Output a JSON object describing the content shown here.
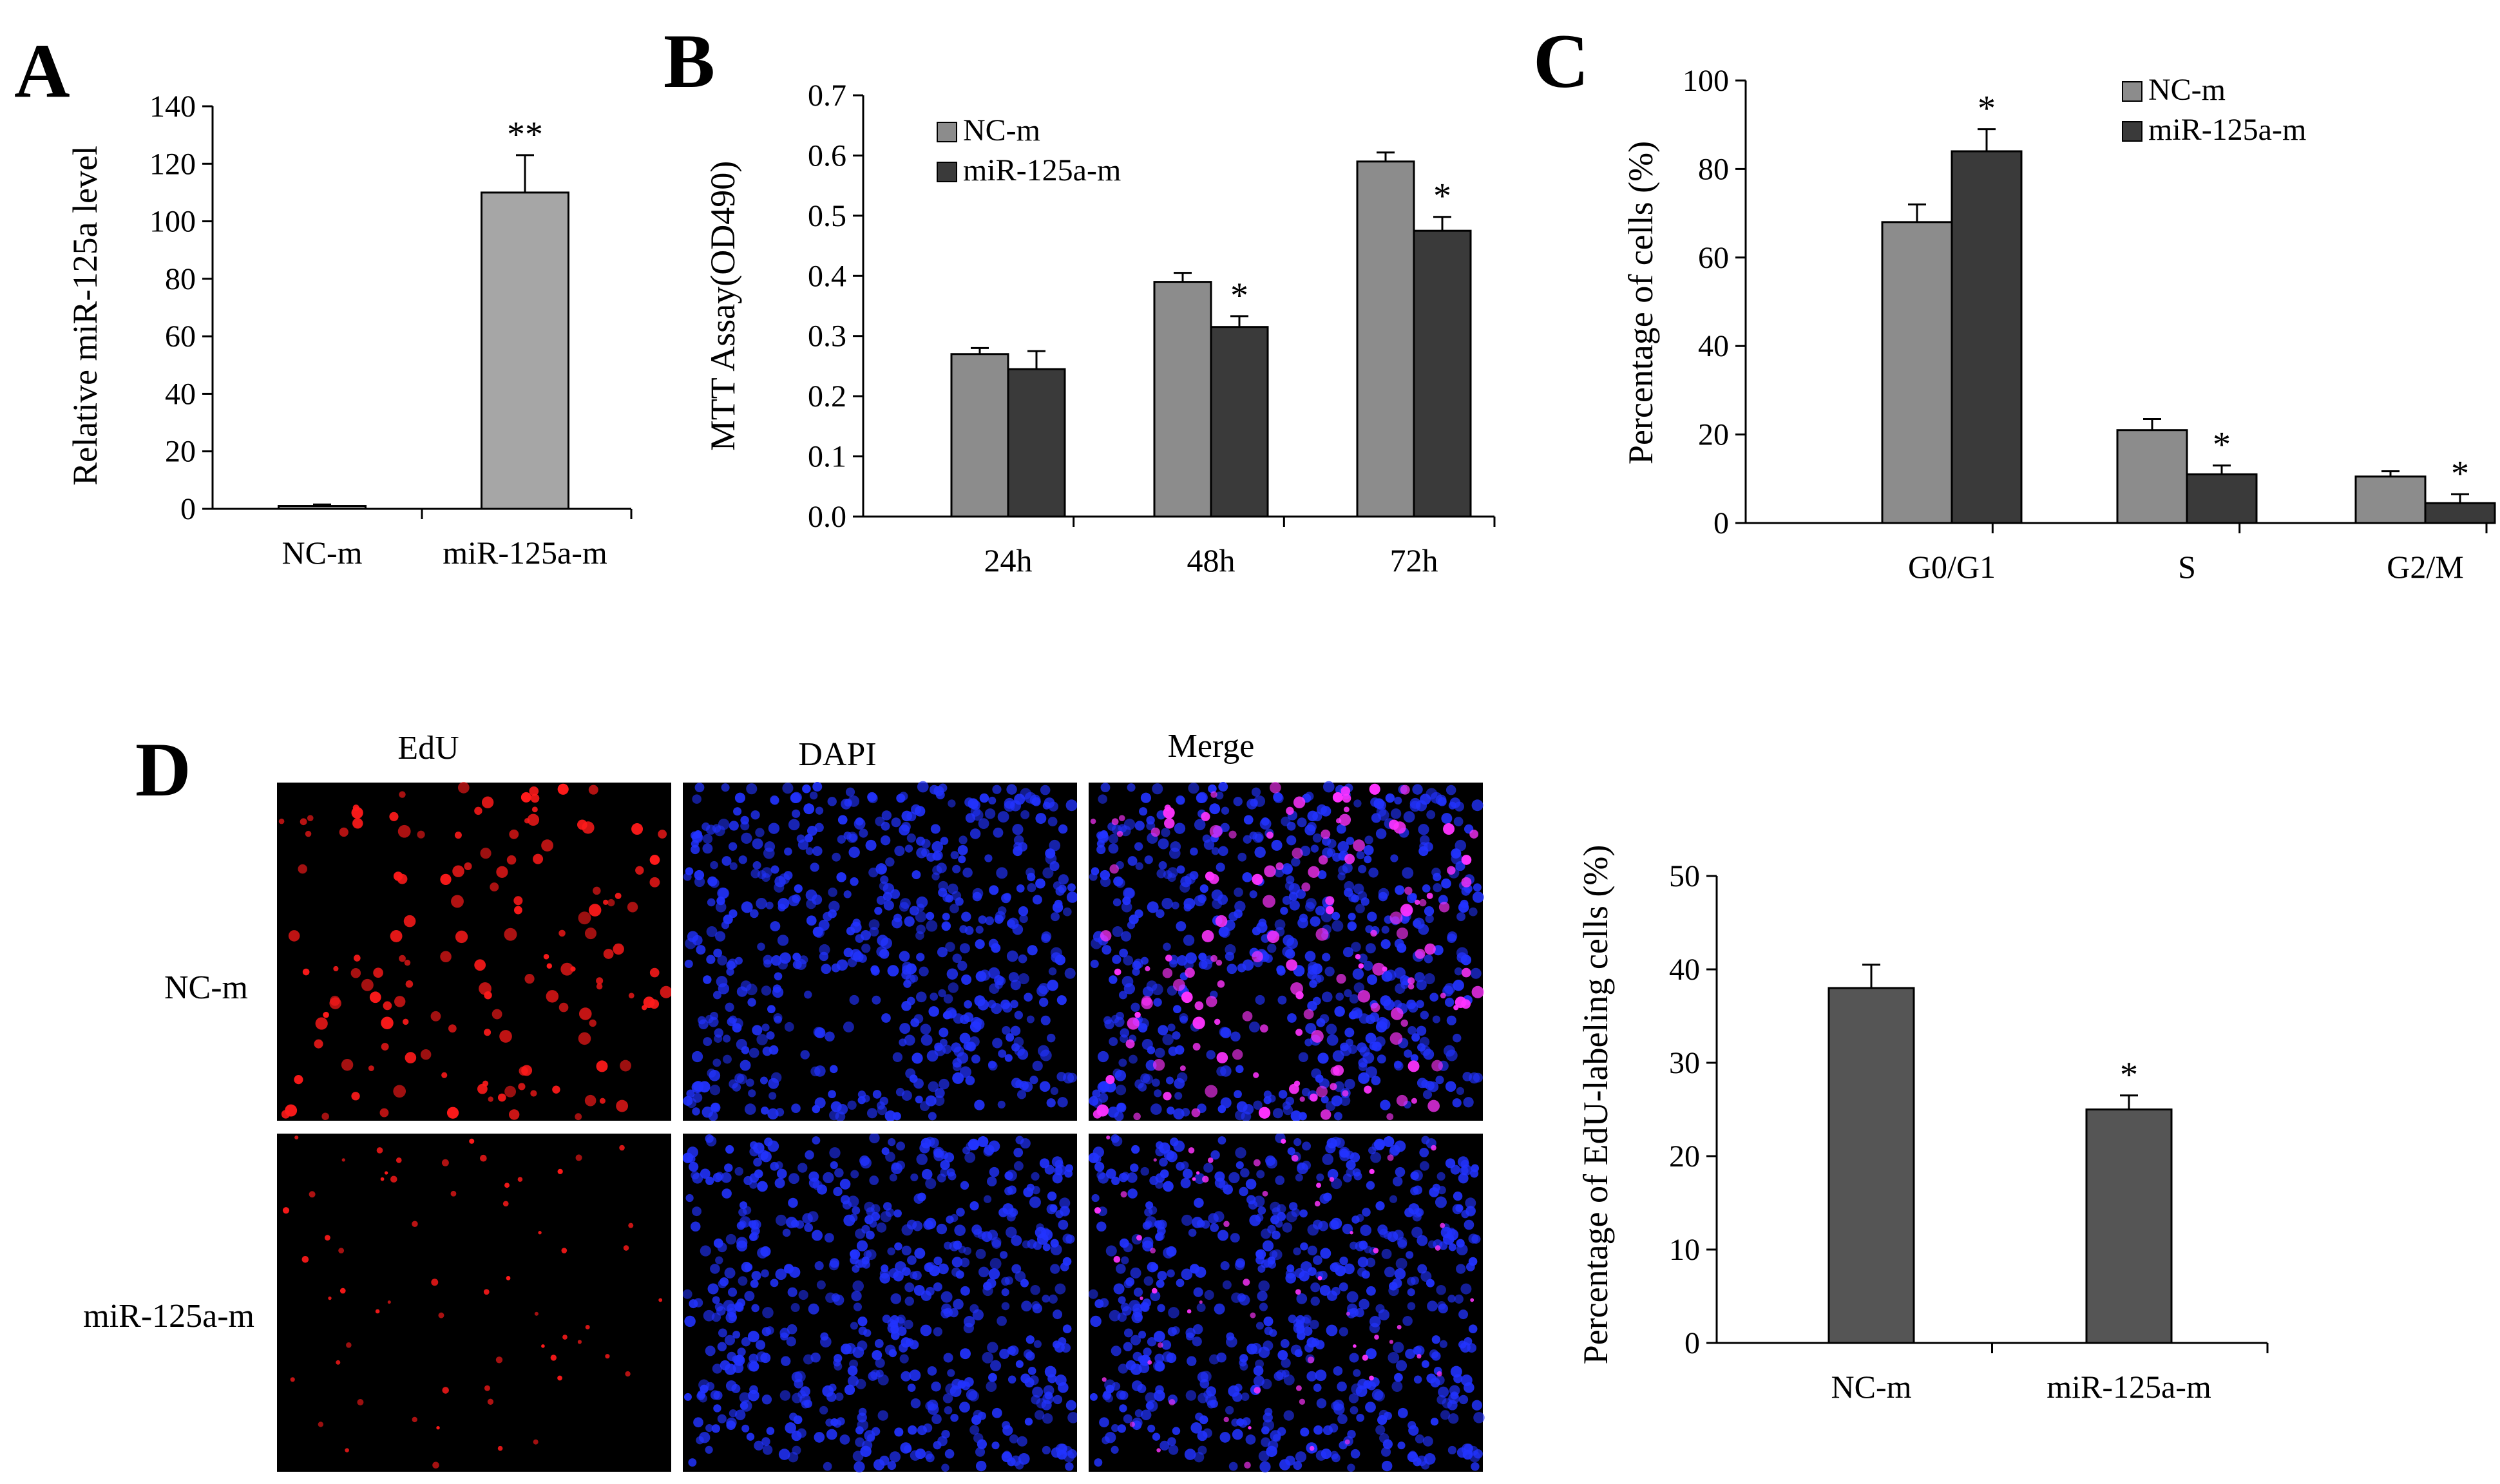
{
  "colors": {
    "nc": "#8c8c8c",
    "mir": "#3a3a3a",
    "mir_a": "#a6a6a6",
    "edu_bar": "#555555",
    "micro_bg": "#000000",
    "edu_cell": "#ff1a1a",
    "dapi_cell": "#2233ff",
    "merge_cell": "#ff33ff"
  },
  "panels": {
    "A": {
      "letter": "A"
    },
    "B": {
      "letter": "B"
    },
    "C": {
      "letter": "C"
    },
    "D": {
      "letter": "D"
    }
  },
  "micrograph": {
    "columns": [
      "EdU",
      "DAPI",
      "Merge"
    ],
    "rows": [
      "NC-m",
      "miR-125a-m"
    ],
    "channel_names": [
      "edu",
      "dapi",
      "merge"
    ]
  },
  "chart_data": [
    {
      "id": "A",
      "type": "bar",
      "ylabel": "Relative miR-125a  level",
      "categories": [
        "NC-m",
        "miR-125a-m"
      ],
      "values": [
        1,
        110
      ],
      "errors": [
        0.5,
        13
      ],
      "annotations": [
        "",
        "**"
      ],
      "ylim": [
        0,
        140
      ],
      "yticks": [
        "0",
        "20",
        "40",
        "60",
        "80",
        "100",
        "120",
        "140"
      ],
      "grid": false
    },
    {
      "id": "B",
      "type": "bar",
      "ylabel": "MTT Assay(OD490)",
      "categories": [
        "24h",
        "48h",
        "72h"
      ],
      "series": [
        {
          "name": "NC-m",
          "values": [
            0.27,
            0.39,
            0.59
          ],
          "errors": [
            0.01,
            0.015,
            0.015
          ],
          "annotations": [
            "",
            "",
            ""
          ]
        },
        {
          "name": "miR-125a-m",
          "values": [
            0.245,
            0.315,
            0.475
          ],
          "errors": [
            0.03,
            0.018,
            0.023
          ],
          "annotations": [
            "",
            "*",
            "*"
          ]
        }
      ],
      "ylim": [
        0,
        0.7
      ],
      "yticks": [
        "0.0",
        "0.1",
        "0.2",
        "0.3",
        "0.4",
        "0.5",
        "0.6",
        "0.7"
      ],
      "legend": "top-left",
      "grid": false
    },
    {
      "id": "C",
      "type": "bar",
      "ylabel": "Percentage of cells (%)",
      "categories": [
        "G0/G1",
        "S",
        "G2/M"
      ],
      "series": [
        {
          "name": "NC-m",
          "values": [
            68,
            21,
            10.5
          ],
          "errors": [
            4,
            2.5,
            1.2
          ],
          "annotations": [
            "",
            "",
            ""
          ]
        },
        {
          "name": "miR-125a-m",
          "values": [
            84,
            11,
            4.5
          ],
          "errors": [
            5,
            2,
            2
          ],
          "annotations": [
            "*",
            "*",
            "*"
          ]
        }
      ],
      "ylim": [
        0,
        100
      ],
      "yticks": [
        "0",
        "20",
        "40",
        "60",
        "80",
        "100"
      ],
      "legend": "top-right",
      "grid": false
    },
    {
      "id": "D",
      "type": "bar",
      "ylabel": "Percentage of  EdU-labeling cells (%)",
      "categories": [
        "NC-m",
        "miR-125a-m"
      ],
      "values": [
        38,
        25
      ],
      "errors": [
        2.5,
        1.5
      ],
      "annotations": [
        "",
        "*"
      ],
      "ylim": [
        0,
        50
      ],
      "yticks": [
        "0",
        "10",
        "20",
        "30",
        "40",
        "50"
      ],
      "grid": false
    }
  ]
}
